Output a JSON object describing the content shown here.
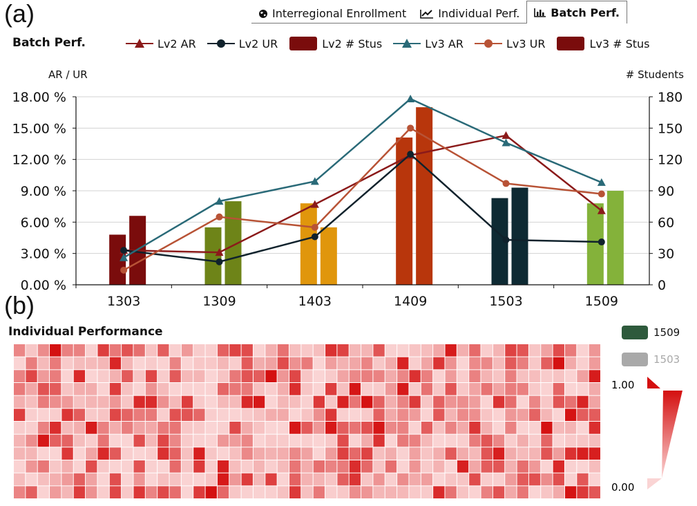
{
  "panels": {
    "a": "(a)",
    "b": "(b)"
  },
  "tabs": [
    {
      "label": "Interregional Enrollment",
      "icon": "globe-icon",
      "active": false
    },
    {
      "label": "Individual Perf.",
      "icon": "line-chart-icon",
      "active": false
    },
    {
      "label": "Batch Perf.",
      "icon": "bar-chart-icon",
      "active": true
    }
  ],
  "batch_title": "Batch Perf.",
  "legend": [
    {
      "label": "Lv2 AR",
      "kind": "line-triangle",
      "color": "#8b1a1a"
    },
    {
      "label": "Lv2 UR",
      "kind": "line-circle",
      "color": "#10222c"
    },
    {
      "label": "Lv2 # Stus",
      "kind": "box",
      "color": "#7a0c0c"
    },
    {
      "label": "Lv3 AR",
      "kind": "line-triangle",
      "color": "#2a6a78"
    },
    {
      "label": "Lv3 UR",
      "kind": "line-circle",
      "color": "#b85336"
    },
    {
      "label": "Lv3 # Stus",
      "kind": "box",
      "color": "#7a0c0c"
    }
  ],
  "individual_title": "Individual Performance",
  "heat_legend": [
    {
      "label": "1509",
      "color": "#2e5a3c"
    },
    {
      "label": "1503",
      "color": "#a9a9a9"
    }
  ],
  "scale": {
    "max_label": "1.00",
    "min_label": "0.00"
  },
  "chart_data": {
    "type": "bar",
    "title": "Batch Perf.",
    "categories": [
      "1303",
      "1309",
      "1403",
      "1409",
      "1503",
      "1509"
    ],
    "ylabel_left": "AR / UR",
    "ylabel_right": "# Students",
    "ylim_left": [
      0,
      18
    ],
    "ylim_right": [
      0,
      180
    ],
    "left_ticks": [
      "0.00 %",
      "3.00 %",
      "6.00 %",
      "9.00 %",
      "12.00 %",
      "15.00 %",
      "18.00 %"
    ],
    "right_ticks": [
      "0",
      "30",
      "60",
      "90",
      "120",
      "150",
      "180"
    ],
    "category_colors": [
      "#7a0c0c",
      "#6e8418",
      "#e0960c",
      "#b8360c",
      "#0e2a33",
      "#84b23a"
    ],
    "bar_series": [
      {
        "name": "Lv2 # Stus",
        "values": [
          48,
          55,
          78,
          141,
          83,
          78
        ]
      },
      {
        "name": "Lv3 # Stus",
        "values": [
          66,
          80,
          55,
          170,
          93,
          90
        ]
      }
    ],
    "line_series": [
      {
        "name": "Lv2 AR",
        "color": "#8b1a1a",
        "marker": "triangle",
        "values": [
          3.3,
          3.1,
          7.7,
          12.4,
          14.3,
          7.1
        ]
      },
      {
        "name": "Lv2 UR",
        "color": "#10222c",
        "marker": "circle",
        "values": [
          3.3,
          2.2,
          4.6,
          12.5,
          4.3,
          4.1
        ]
      },
      {
        "name": "Lv3 AR",
        "color": "#2a6a78",
        "marker": "triangle",
        "values": [
          2.6,
          8.0,
          9.9,
          17.8,
          13.6,
          9.8
        ]
      },
      {
        "name": "Lv3 UR",
        "color": "#b85336",
        "marker": "circle",
        "values": [
          1.4,
          6.5,
          5.5,
          15.0,
          9.7,
          8.7
        ]
      }
    ],
    "heatmap": {
      "rows": 12,
      "cols": 49,
      "scale": [
        0,
        1
      ]
    }
  }
}
